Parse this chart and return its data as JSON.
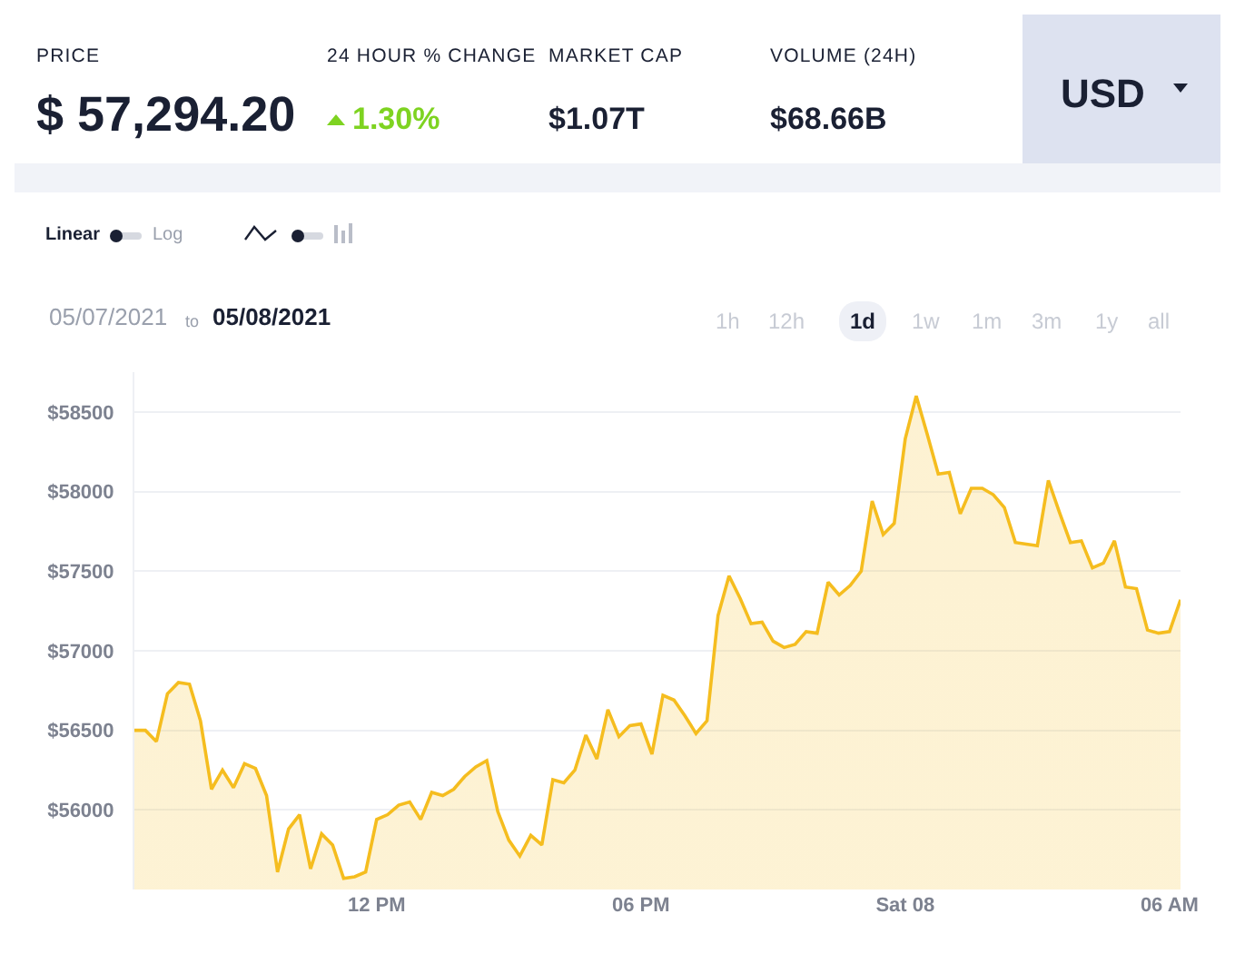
{
  "chart_data": {
    "type": "area",
    "annotations": [
      "PRICE",
      "$ 57,294.20",
      "24 HOUR % CHANGE",
      "1.30%",
      "MARKET CAP",
      "$1.07T",
      "VOLUME (24H)",
      "$68.66B",
      "USD",
      "Linear",
      "Log",
      "05/07/2021",
      "to",
      "05/08/2021",
      "1h",
      "12h",
      "1d",
      "1w",
      "1m",
      "3m",
      "1y",
      "all"
    ],
    "x": [
      "2021-05-07T06:30",
      "2021-05-07T06:45",
      "2021-05-07T07:00",
      "2021-05-07T07:15",
      "2021-05-07T07:30",
      "2021-05-07T07:45",
      "2021-05-07T08:00",
      "2021-05-07T08:15",
      "2021-05-07T08:30",
      "2021-05-07T08:45",
      "2021-05-07T09:00",
      "2021-05-07T09:15",
      "2021-05-07T09:30",
      "2021-05-07T09:45",
      "2021-05-07T10:00",
      "2021-05-07T10:15",
      "2021-05-07T10:30",
      "2021-05-07T10:45",
      "2021-05-07T11:00",
      "2021-05-07T11:15",
      "2021-05-07T11:30",
      "2021-05-07T11:45",
      "2021-05-07T12:00",
      "2021-05-07T12:15",
      "2021-05-07T12:30",
      "2021-05-07T12:45",
      "2021-05-07T13:00",
      "2021-05-07T13:15",
      "2021-05-07T13:30",
      "2021-05-07T13:45",
      "2021-05-07T14:00",
      "2021-05-07T14:15",
      "2021-05-07T14:30",
      "2021-05-07T14:45",
      "2021-05-07T15:00",
      "2021-05-07T15:15",
      "2021-05-07T15:30",
      "2021-05-07T15:45",
      "2021-05-07T16:00",
      "2021-05-07T16:15",
      "2021-05-07T16:30",
      "2021-05-07T16:45",
      "2021-05-07T17:00",
      "2021-05-07T17:15",
      "2021-05-07T17:30",
      "2021-05-07T17:45",
      "2021-05-07T18:00",
      "2021-05-07T18:15",
      "2021-05-07T18:30",
      "2021-05-07T18:45",
      "2021-05-07T19:00",
      "2021-05-07T19:15",
      "2021-05-07T19:30",
      "2021-05-07T19:45",
      "2021-05-07T20:00",
      "2021-05-07T20:15",
      "2021-05-07T20:30",
      "2021-05-07T20:45",
      "2021-05-07T21:00",
      "2021-05-07T21:15",
      "2021-05-07T21:30",
      "2021-05-07T21:45",
      "2021-05-07T22:00",
      "2021-05-07T22:15",
      "2021-05-07T22:30",
      "2021-05-07T22:45",
      "2021-05-07T23:00",
      "2021-05-07T23:15",
      "2021-05-07T23:30",
      "2021-05-07T23:45",
      "2021-05-08T00:00",
      "2021-05-08T00:15",
      "2021-05-08T00:30",
      "2021-05-08T00:45",
      "2021-05-08T01:00",
      "2021-05-08T01:15",
      "2021-05-08T01:30",
      "2021-05-08T01:45",
      "2021-05-08T02:00",
      "2021-05-08T02:15",
      "2021-05-08T02:30",
      "2021-05-08T02:45",
      "2021-05-08T03:00",
      "2021-05-08T03:15",
      "2021-05-08T03:30",
      "2021-05-08T03:45",
      "2021-05-08T04:00",
      "2021-05-08T04:15",
      "2021-05-08T04:30",
      "2021-05-08T04:45",
      "2021-05-08T05:00",
      "2021-05-08T05:15",
      "2021-05-08T05:30",
      "2021-05-08T05:45",
      "2021-05-08T06:00",
      "2021-05-08T06:15"
    ],
    "series": [
      {
        "color": "#f5bd1f",
        "values": [
          56500,
          56500,
          56430,
          56730,
          56800,
          56790,
          56560,
          56130,
          56250,
          56140,
          56290,
          56260,
          56090,
          55610,
          55880,
          55970,
          55630,
          55850,
          55780,
          55570,
          55580,
          55610,
          55940,
          55970,
          56030,
          56050,
          55940,
          56110,
          56090,
          56130,
          56210,
          56270,
          56310,
          55990,
          55810,
          55710,
          55840,
          55780,
          56190,
          56170,
          56250,
          56470,
          56320,
          56630,
          56460,
          56530,
          56540,
          56350,
          56720,
          56690,
          56590,
          56480,
          56560,
          57220,
          57470,
          57330,
          57170,
          57180,
          57060,
          57020,
          57040,
          57120,
          57110,
          57430,
          57350,
          57410,
          57500,
          57940,
          57730,
          57800,
          58330,
          58600,
          58360,
          58110,
          58120,
          57860,
          58020,
          58020,
          57980,
          57900,
          57680,
          57670,
          57660,
          58070,
          57870,
          57680,
          57690,
          57520,
          57550,
          57690,
          57400,
          57390,
          57130,
          57110,
          57120,
          57320
        ]
      }
    ],
    "xlim": [
      "2021-05-07T06:30",
      "2021-05-08T06:15"
    ],
    "xticks": [
      {
        "value": "2021-05-07T12:00",
        "label": "12 PM"
      },
      {
        "value": "2021-05-07T18:00",
        "label": "06 PM"
      },
      {
        "value": "2021-05-08T00:00",
        "label": "Sat 08"
      },
      {
        "value": "2021-05-08T06:00",
        "label": "06 AM"
      }
    ],
    "ylim": [
      55500,
      58750
    ],
    "yticks": [
      {
        "value": 56000,
        "label": "$56000"
      },
      {
        "value": 56500,
        "label": "$56500"
      },
      {
        "value": 57000,
        "label": "$57000"
      },
      {
        "value": 57500,
        "label": "$57500"
      },
      {
        "value": 58000,
        "label": "$58000"
      },
      {
        "value": 58500,
        "label": "$58500"
      }
    ],
    "grid": "y"
  }
}
